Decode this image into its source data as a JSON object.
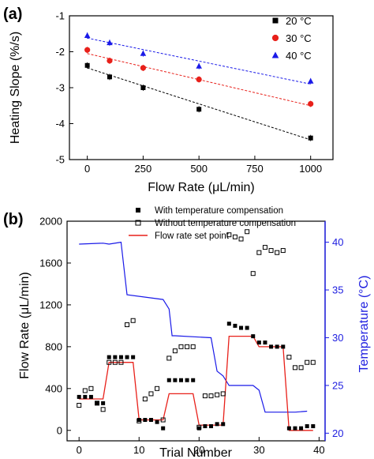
{
  "chart_data": [
    {
      "panel_label": "(a)",
      "type": "scatter",
      "xlabel": "Flow Rate (μL/min)",
      "ylabel": "Heating Slope (%/s)",
      "xlim": [
        -80,
        1100
      ],
      "ylim": [
        -5,
        -1
      ],
      "xticks": [
        "0",
        "250",
        "500",
        "750",
        "1000"
      ],
      "yticks": [
        "-1",
        "-2",
        "-3",
        "-4",
        "-5"
      ],
      "legend_position": "top-right",
      "series": [
        {
          "name": "20 °C",
          "color": "#000000",
          "marker": "square",
          "x": [
            0,
            100,
            250,
            500,
            1000
          ],
          "y": [
            -2.38,
            -2.7,
            -3.0,
            -3.6,
            -4.4
          ],
          "fit": [
            -2.45,
            -4.45
          ]
        },
        {
          "name": "30 °C",
          "color": "#e8201a",
          "marker": "circle",
          "x": [
            0,
            100,
            250,
            500,
            1000
          ],
          "y": [
            -1.95,
            -2.25,
            -2.45,
            -2.77,
            -3.45
          ],
          "fit": [
            -2.05,
            -3.5
          ]
        },
        {
          "name": "40 °C",
          "color": "#1a1ae8",
          "marker": "triangle",
          "x": [
            0,
            100,
            250,
            500,
            1000
          ],
          "y": [
            -1.55,
            -1.75,
            -2.05,
            -2.4,
            -2.82
          ],
          "fit": [
            -1.62,
            -2.9
          ]
        }
      ]
    },
    {
      "panel_label": "(b)",
      "type": "scatter",
      "xlabel": "Trial Number",
      "ylabel": "Flow Rate (μL/min)",
      "y2label": "Temperature (°C)",
      "xlim": [
        -2,
        41
      ],
      "ylim": [
        -100,
        2000
      ],
      "y2lim": [
        19.2,
        42.2
      ],
      "xticks": [
        "0",
        "10",
        "20",
        "30",
        "40"
      ],
      "yticks": [
        "0",
        "400",
        "800",
        "1200",
        "1600",
        "2000"
      ],
      "y2ticks": [
        "20",
        "25",
        "30",
        "35",
        "40"
      ],
      "legend_position": "top-center",
      "series": [
        {
          "name": "With temperature compensation",
          "marker": "filled-square",
          "color": "#000000",
          "x": [
            0,
            1,
            2,
            3,
            4,
            5,
            6,
            7,
            8,
            9,
            10,
            11,
            12,
            13,
            14,
            15,
            16,
            17,
            18,
            19,
            20,
            21,
            22,
            23,
            24,
            25,
            26,
            27,
            28,
            29,
            30,
            31,
            32,
            33,
            34,
            35,
            36,
            37,
            38,
            39
          ],
          "y": [
            320,
            320,
            320,
            260,
            260,
            700,
            700,
            700,
            700,
            700,
            100,
            100,
            100,
            80,
            20,
            480,
            480,
            480,
            480,
            480,
            20,
            40,
            40,
            60,
            60,
            1020,
            1000,
            980,
            980,
            900,
            840,
            840,
            800,
            800,
            800,
            20,
            20,
            20,
            40,
            40
          ]
        },
        {
          "name": "Without temperature compensation",
          "marker": "open-square",
          "color": "#000000",
          "x": [
            0,
            1,
            2,
            3,
            4,
            5,
            6,
            7,
            8,
            9,
            10,
            11,
            12,
            13,
            14,
            15,
            16,
            17,
            18,
            19,
            20,
            21,
            22,
            23,
            24,
            25,
            26,
            27,
            28,
            29,
            30,
            31,
            32,
            33,
            34,
            35,
            36,
            37,
            38,
            39
          ],
          "y": [
            240,
            380,
            400,
            260,
            200,
            650,
            650,
            650,
            1010,
            1050,
            90,
            300,
            350,
            400,
            100,
            690,
            760,
            800,
            800,
            800,
            30,
            330,
            330,
            340,
            350,
            1870,
            1850,
            1830,
            1900,
            1500,
            1700,
            1750,
            1720,
            1700,
            1720,
            700,
            600,
            600,
            650,
            650
          ]
        },
        {
          "name": "Flow rate set point",
          "marker": "line",
          "color": "#e8201a",
          "x": [
            0,
            4,
            5,
            9,
            10,
            14,
            15,
            19,
            20,
            24,
            25,
            29,
            30,
            34,
            35,
            39
          ],
          "y": [
            300,
            300,
            650,
            650,
            100,
            100,
            350,
            350,
            50,
            50,
            900,
            900,
            800,
            800,
            0,
            0
          ]
        },
        {
          "name": "Temperature",
          "axis": "right",
          "marker": "line",
          "color": "#1a1ae8",
          "x": [
            0,
            4,
            5,
            7,
            8,
            14,
            15,
            15.5,
            16,
            22,
            23,
            24,
            25,
            29,
            30,
            31,
            36,
            38
          ],
          "y": [
            39.8,
            39.9,
            39.8,
            40.0,
            34.5,
            34.0,
            33.0,
            30.2,
            30.2,
            30.0,
            26.5,
            26.0,
            25.0,
            25.0,
            24.5,
            22.2,
            22.2,
            22.3
          ]
        }
      ]
    }
  ]
}
